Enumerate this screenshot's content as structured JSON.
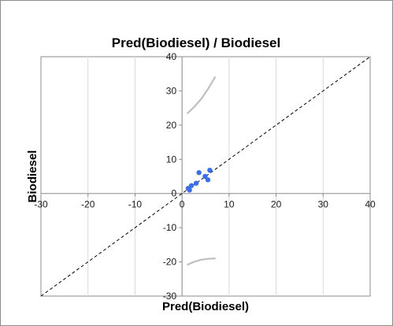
{
  "chart_data": {
    "type": "scatter",
    "title": "Pred(Biodiesel) / Biodiesel",
    "xlabel": "Pred(Biodiesel)",
    "ylabel": "Biodiesel",
    "xlim": [
      -30,
      40
    ],
    "ylim": [
      -30,
      40
    ],
    "xticks": [
      "-30",
      "-20",
      "-10",
      "0",
      "10",
      "20",
      "30",
      "40"
    ],
    "yticks": [
      "-30",
      "-20",
      "-10",
      "0",
      "10",
      "20",
      "30",
      "40"
    ],
    "grid": "vertical",
    "reference_line": {
      "style": "dashed",
      "x": [
        -30,
        40
      ],
      "y": [
        -30,
        40
      ]
    },
    "points": {
      "color": "#3b6fe8",
      "x": [
        1.3,
        1.6,
        2.0,
        3.0,
        3.6,
        4.9,
        5.5,
        5.9
      ],
      "y": [
        1.5,
        1.0,
        2.3,
        3.0,
        6.1,
        5.0,
        4.0,
        6.8
      ]
    },
    "confidence_curves": {
      "color": "#bfbfbf",
      "upper": {
        "x": [
          1.2,
          2.5,
          4.0,
          5.5,
          7.0
        ],
        "y": [
          23.5,
          25.2,
          27.5,
          30.5,
          34.0
        ]
      },
      "lower": {
        "x": [
          1.2,
          2.5,
          4.0,
          5.5,
          7.0
        ],
        "y": [
          -20.8,
          -20.0,
          -19.4,
          -19.1,
          -19.0
        ]
      }
    }
  }
}
